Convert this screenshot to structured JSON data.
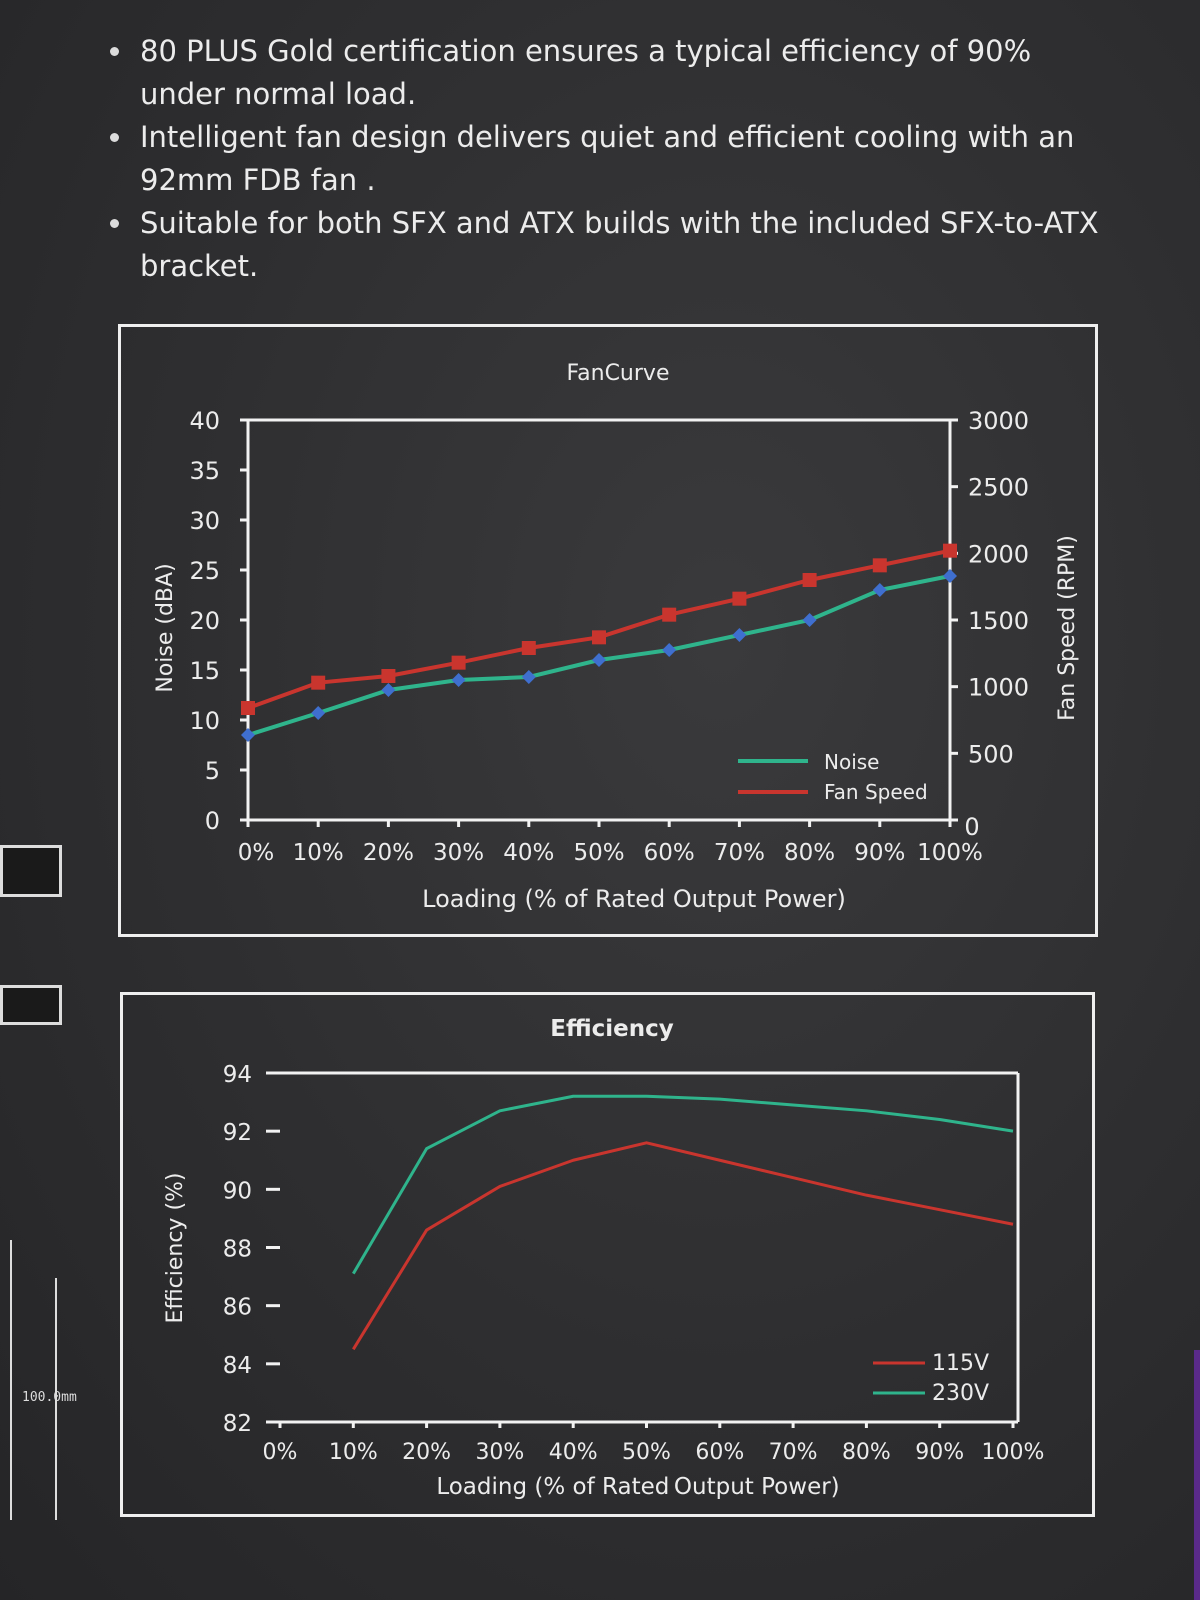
{
  "bullets": [
    "80 PLUS Gold certification ensures a typical efficiency of 90% under normal load.",
    "Intelligent fan design delivers quiet and efficient cooling with an 92mm FDB fan .",
    "Suitable for both SFX and ATX builds with the included SFX-to-ATX bracket."
  ],
  "side_label": "100.0mm",
  "colors": {
    "green": "#2fb48c",
    "red": "#c9352e",
    "blue_marker": "#3f6fcf",
    "red_marker": "#c9352e"
  },
  "chart_data": [
    {
      "type": "line",
      "title": "FanCurve",
      "xlabel": "Loading (% of Rated Output Power)",
      "ylabel": "Noise (dBA)",
      "y2label": "Fan Speed (RPM)",
      "x": [
        "0%",
        "10%",
        "20%",
        "30%",
        "40%",
        "50%",
        "60%",
        "70%",
        "80%",
        "90%",
        "100%"
      ],
      "ylim": [
        0,
        40
      ],
      "y2lim": [
        0,
        3000
      ],
      "yticks": [
        "0",
        "5",
        "10",
        "15",
        "20",
        "25",
        "30",
        "35",
        "40"
      ],
      "y2ticks": [
        "0",
        "500",
        "1000",
        "1500",
        "2000",
        "2500",
        "3000"
      ],
      "series": [
        {
          "name": "Noise",
          "axis": "left",
          "color": "#2fb48c",
          "marker": "diamond",
          "values": [
            8.5,
            10.7,
            13,
            14,
            14.3,
            16,
            17,
            18.5,
            20,
            23,
            24.4
          ]
        },
        {
          "name": "Fan Speed",
          "axis": "right",
          "color": "#c9352e",
          "marker": "square",
          "values": [
            840,
            1030,
            1080,
            1180,
            1290,
            1370,
            1540,
            1660,
            1800,
            1910,
            2020
          ]
        }
      ],
      "legend": [
        "Noise",
        "Fan Speed"
      ],
      "legend_position": "bottom-right"
    },
    {
      "type": "line",
      "title": "Efficiency",
      "xlabel": "Loading (% of Rated Output Power)",
      "ylabel": "Efficiency (%)",
      "x": [
        "0%",
        "10%",
        "20%",
        "30%",
        "40%",
        "50%",
        "60%",
        "70%",
        "80%",
        "90%",
        "100%"
      ],
      "ylim": [
        82,
        94
      ],
      "yticks": [
        "82",
        "84",
        "86",
        "88",
        "90",
        "92",
        "94"
      ],
      "series": [
        {
          "name": "115V",
          "color": "#c9352e",
          "x": [
            10,
            20,
            30,
            40,
            50,
            60,
            70,
            80,
            90,
            100
          ],
          "values": [
            84.5,
            88.6,
            90.1,
            91,
            91.6,
            91,
            90.4,
            89.8,
            89.3,
            88.8
          ]
        },
        {
          "name": "230V",
          "color": "#2fb48c",
          "x": [
            10,
            20,
            30,
            40,
            50,
            60,
            70,
            80,
            90,
            100
          ],
          "values": [
            87.1,
            91.4,
            92.7,
            93.2,
            93.2,
            93.1,
            92.9,
            92.7,
            92.4,
            92
          ]
        }
      ],
      "legend": [
        "115V",
        "230V"
      ],
      "legend_position": "bottom-right"
    }
  ]
}
